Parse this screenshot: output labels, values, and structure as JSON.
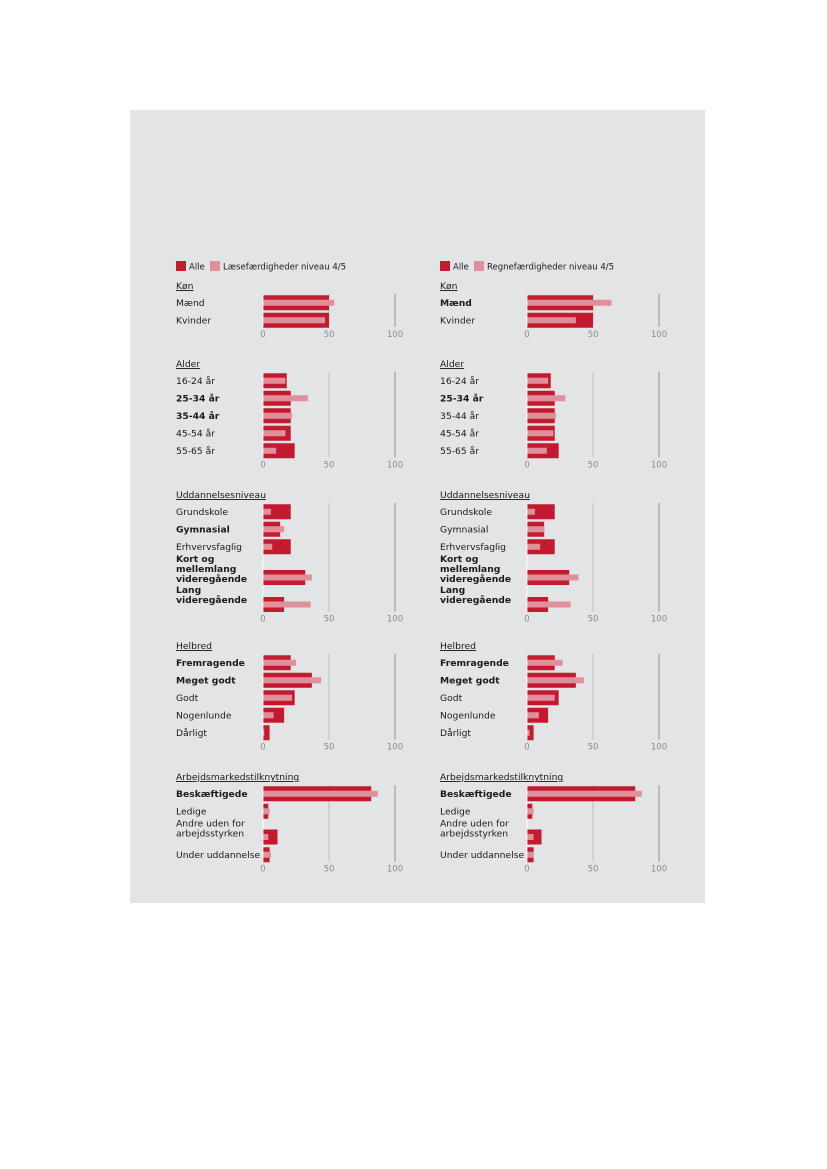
{
  "colors": {
    "all": "#c41a30",
    "skill": "#e0909a",
    "panel": "#e3e4e5",
    "grid": "#a8a8a8"
  },
  "chart_data": [
    {
      "type": "bar",
      "orientation": "horizontal",
      "legend": {
        "placement": "top-left",
        "entries": [
          "Alle",
          "Læsefærdigheder niveau 4/5"
        ]
      },
      "xlim": [
        0,
        100
      ],
      "ticks": [
        "0",
        "50",
        "100"
      ],
      "groups": [
        {
          "title": "Køn",
          "categories": [
            "Mænd",
            "Kvinder"
          ],
          "bold": [
            false,
            false
          ],
          "series": [
            {
              "name": "Alle",
              "values": [
                50,
                50
              ]
            },
            {
              "name": "Læsefærdigheder niveau 4/5",
              "values": [
                54,
                47
              ]
            }
          ]
        },
        {
          "title": "Alder",
          "categories": [
            "16-24 år",
            "25-34 år",
            "35-44 år",
            "45-54 år",
            "55-65 år"
          ],
          "bold": [
            false,
            true,
            true,
            false,
            false
          ],
          "series": [
            {
              "name": "Alle",
              "values": [
                18,
                21,
                21,
                21,
                24
              ]
            },
            {
              "name": "Læsefærdigheder niveau 4/5",
              "values": [
                17,
                34,
                22,
                17,
                10
              ]
            }
          ]
        },
        {
          "title": "Uddannelsesniveau",
          "categories": [
            "Grundskole",
            "Gymnasial",
            "Erhvervsfaglig",
            "Kort og\nmellemlang\nvideregående",
            "Lang\nvideregående"
          ],
          "bold": [
            false,
            true,
            false,
            true,
            true
          ],
          "series": [
            {
              "name": "Alle",
              "values": [
                21,
                13,
                21,
                32,
                16
              ]
            },
            {
              "name": "Læsefærdigheder niveau 4/5",
              "values": [
                6,
                16,
                7,
                37,
                36
              ]
            }
          ]
        },
        {
          "title": "Helbred",
          "categories": [
            "Fremragende",
            "Meget godt",
            "Godt",
            "Nogenlunde",
            "Dårligt"
          ],
          "bold": [
            true,
            true,
            false,
            false,
            false
          ],
          "series": [
            {
              "name": "Alle",
              "values": [
                21,
                37,
                24,
                16,
                5
              ]
            },
            {
              "name": "Læsefærdigheder niveau 4/5",
              "values": [
                25,
                44,
                22,
                8,
                1
              ]
            }
          ]
        },
        {
          "title": "Arbejdsmarkedstilknytning",
          "categories": [
            "Beskæftigede",
            "Ledige",
            "Andre uden for\narbejdsstyrken",
            "Under uddannelse"
          ],
          "bold": [
            true,
            false,
            false,
            false
          ],
          "series": [
            {
              "name": "Alle",
              "values": [
                82,
                4,
                11,
                5
              ]
            },
            {
              "name": "Læsefærdigheder niveau 4/5",
              "values": [
                87,
                5,
                4,
                6
              ]
            }
          ]
        }
      ]
    },
    {
      "type": "bar",
      "orientation": "horizontal",
      "legend": {
        "placement": "top-left",
        "entries": [
          "Alle",
          "Regnefærdigheder niveau 4/5"
        ]
      },
      "xlim": [
        0,
        100
      ],
      "ticks": [
        "0",
        "50",
        "100"
      ],
      "groups": [
        {
          "title": "Køn",
          "categories": [
            "Mænd",
            "Kvinder"
          ],
          "bold": [
            true,
            false
          ],
          "series": [
            {
              "name": "Alle",
              "values": [
                50,
                50
              ]
            },
            {
              "name": "Regnefærdigheder niveau 4/5",
              "values": [
                64,
                37
              ]
            }
          ]
        },
        {
          "title": "Alder",
          "categories": [
            "16-24 år",
            "25-34 år",
            "35-44 år",
            "45-54 år",
            "55-65 år"
          ],
          "bold": [
            false,
            true,
            false,
            false,
            false
          ],
          "series": [
            {
              "name": "Alle",
              "values": [
                18,
                21,
                21,
                21,
                24
              ]
            },
            {
              "name": "Regnefærdigheder niveau 4/5",
              "values": [
                16,
                29,
                22,
                20,
                15
              ]
            }
          ]
        },
        {
          "title": "Uddannelsesniveau",
          "categories": [
            "Grundskole",
            "Gymnasial",
            "Erhvervsfaglig",
            "Kort og\nmellemlang\nvideregående",
            "Lang\nvideregående"
          ],
          "bold": [
            false,
            false,
            false,
            true,
            true
          ],
          "series": [
            {
              "name": "Alle",
              "values": [
                21,
                13,
                21,
                32,
                16
              ]
            },
            {
              "name": "Regnefærdigheder niveau 4/5",
              "values": [
                6,
                13,
                10,
                39,
                33
              ]
            }
          ]
        },
        {
          "title": "Helbred",
          "categories": [
            "Fremragende",
            "Meget godt",
            "Godt",
            "Nogenlunde",
            "Dårligt"
          ],
          "bold": [
            true,
            true,
            false,
            false,
            false
          ],
          "series": [
            {
              "name": "Alle",
              "values": [
                21,
                37,
                24,
                16,
                5
              ]
            },
            {
              "name": "Regnefærdigheder niveau 4/5",
              "values": [
                27,
                43,
                21,
                9,
                2
              ]
            }
          ]
        },
        {
          "title": "Arbejdsmarkedstilknytning",
          "categories": [
            "Beskæftigede",
            "Ledige",
            "Andre uden for\narbejdsstyrken",
            "Under uddannelse"
          ],
          "bold": [
            true,
            false,
            false,
            false
          ],
          "series": [
            {
              "name": "Alle",
              "values": [
                82,
                4,
                11,
                5
              ]
            },
            {
              "name": "Regnefærdigheder niveau 4/5",
              "values": [
                87,
                5,
                5,
                5
              ]
            }
          ]
        }
      ]
    }
  ]
}
